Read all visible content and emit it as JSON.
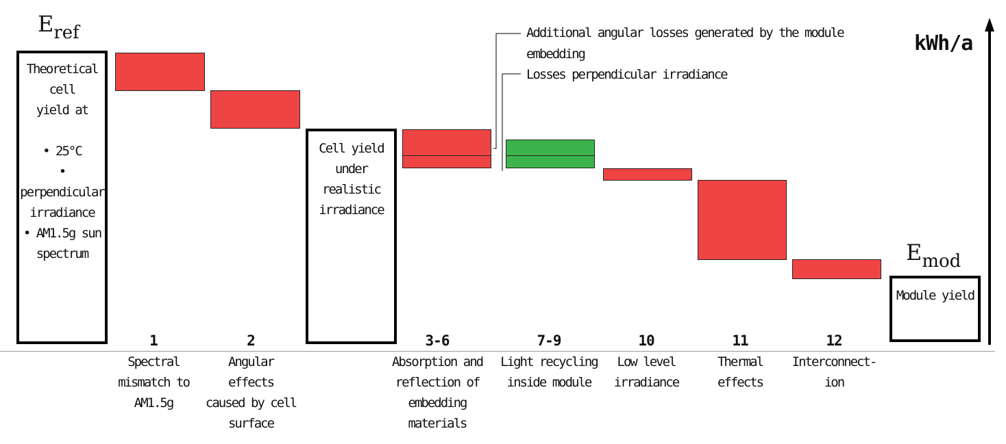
{
  "diagram": {
    "e_ref": {
      "base": "E",
      "sub": "ref"
    },
    "e_mod": {
      "base": "E",
      "sub": "mod"
    },
    "axis_unit": "kWh/a",
    "theoretical_box": {
      "lines": [
        "Theoretical cell",
        "yield at",
        "",
        "• 25°C",
        "• perpendicular",
        "irradiance",
        "• AM1.5g sun",
        "spectrum"
      ]
    },
    "realistic_box": {
      "lines": [
        "Cell yield",
        "under realistic",
        "irradiance"
      ]
    },
    "module_box": {
      "lines": [
        "Module yield"
      ]
    },
    "steps": [
      {
        "number": "1",
        "lines": [
          "Spectral",
          "mismatch to",
          "AM1.5g"
        ]
      },
      {
        "number": "2",
        "lines": [
          "Angular",
          "effects",
          "caused by cell",
          "surface"
        ]
      },
      {
        "number": "3-6",
        "lines": [
          "Absorption and",
          "reflection of",
          "embedding",
          "materials"
        ]
      },
      {
        "number": "7-9",
        "lines": [
          "Light recycling",
          "inside module"
        ]
      },
      {
        "number": "10",
        "lines": [
          "Low level",
          "irradiance"
        ]
      },
      {
        "number": "11",
        "lines": [
          "Thermal",
          "effects"
        ]
      },
      {
        "number": "12",
        "lines": [
          "Interconnect-",
          "ion"
        ]
      }
    ],
    "annotations": {
      "angular": [
        "Additional angular losses generated by the module",
        "embedding"
      ],
      "perpendicular": [
        "Losses perpendicular irradiance"
      ]
    },
    "colors": {
      "loss": "#ef4444",
      "gain": "#3cb44b",
      "outline": "#000000"
    }
  }
}
